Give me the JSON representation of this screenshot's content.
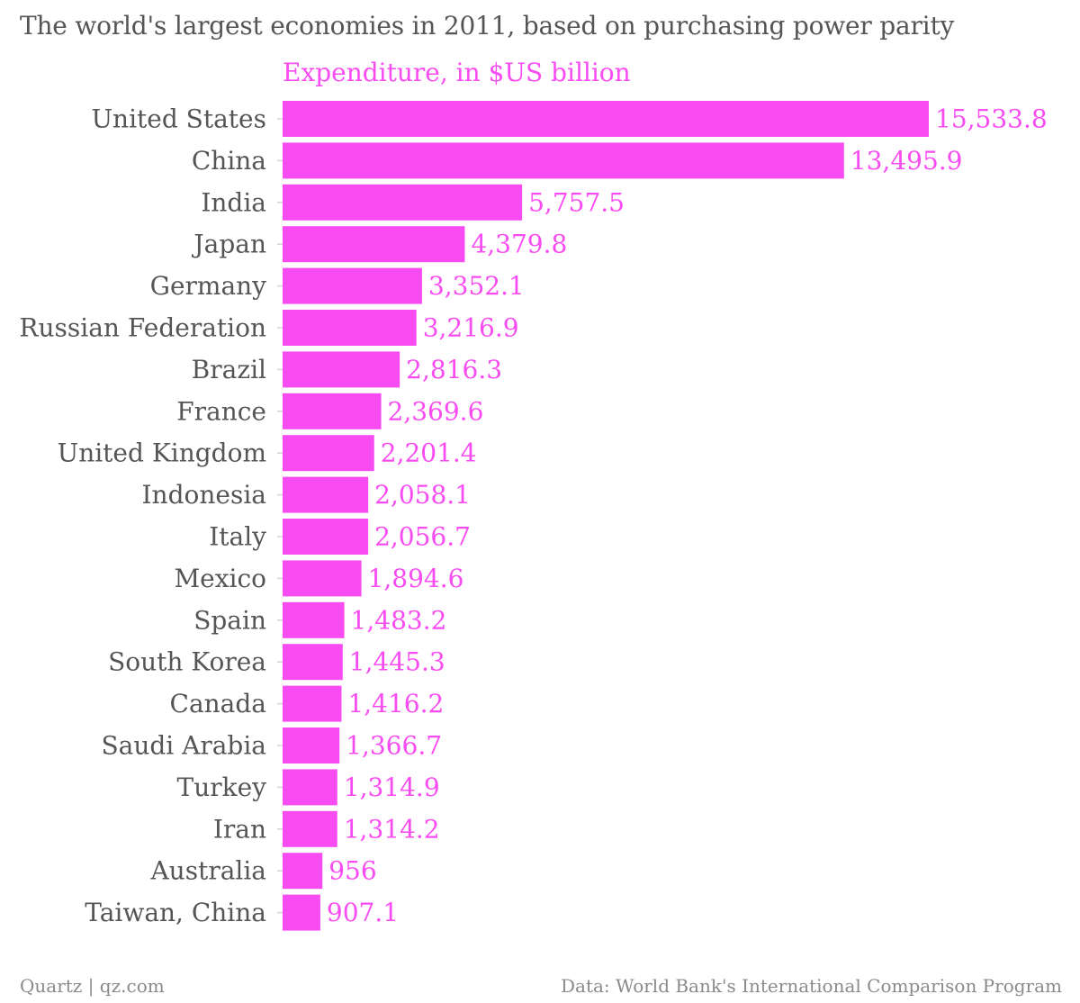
{
  "title": "The world's largest economies in 2011, based on purchasing power parity",
  "colors": {
    "bar": "#f84cf2",
    "text": "#555555",
    "tick": "#d6d6d6",
    "footer": "#8a8a8a"
  },
  "footer": {
    "left": "Quartz | qz.com",
    "right": "Data: World Bank's International Comparison Program"
  },
  "chart_data": {
    "type": "bar",
    "orientation": "horizontal",
    "title": "The world's largest economies in 2011, based on purchasing power parity",
    "subtitle": "Expenditure, in $US billion",
    "categories": [
      "United States",
      "China",
      "India",
      "Japan",
      "Germany",
      "Russian Federation",
      "Brazil",
      "France",
      "United Kingdom",
      "Indonesia",
      "Italy",
      "Mexico",
      "Spain",
      "South Korea",
      "Canada",
      "Saudi Arabia",
      "Turkey",
      "Iran",
      "Australia",
      "Taiwan, China"
    ],
    "values": [
      15533.8,
      13495.9,
      5757.5,
      4379.8,
      3352.1,
      3216.9,
      2816.3,
      2369.6,
      2201.4,
      2058.1,
      2056.7,
      1894.6,
      1483.2,
      1445.3,
      1416.2,
      1366.7,
      1314.9,
      1314.2,
      956,
      907.1
    ],
    "value_labels": [
      "15,533.8",
      "13,495.9",
      "5,757.5",
      "4,379.8",
      "3,352.1",
      "3,216.9",
      "2,816.3",
      "2,369.6",
      "2,201.4",
      "2,058.1",
      "2,056.7",
      "1,894.6",
      "1,483.2",
      "1,445.3",
      "1,416.2",
      "1,366.7",
      "1,314.9",
      "1,314.2",
      "956",
      "907.1"
    ],
    "xlim": [
      0,
      15533.8
    ],
    "grid": false,
    "legend": "none"
  }
}
